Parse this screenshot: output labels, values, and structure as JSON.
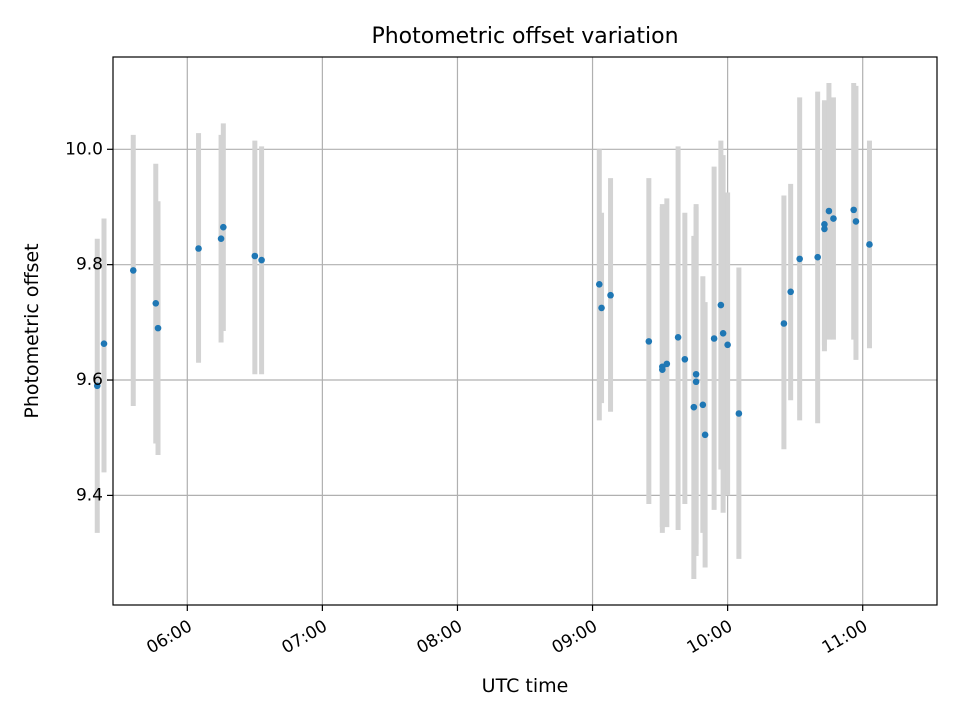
{
  "chart_data": {
    "type": "scatter",
    "title": "Photometric offset variation",
    "xlabel": "UTC time",
    "ylabel": "Photometric offset",
    "x_unit": "UTC HH:MM",
    "xlim": [
      "05:27",
      "11:33"
    ],
    "ylim": [
      9.21,
      10.16
    ],
    "grid": true,
    "x_ticks": [
      "06:00",
      "07:00",
      "08:00",
      "09:00",
      "10:00",
      "11:00"
    ],
    "y_ticks": [
      "9.4",
      "9.6",
      "9.8",
      "10.0"
    ],
    "point_color": "#1f77b4",
    "errorbar_color": "#d3d3d3",
    "series": [
      {
        "points": [
          {
            "x": "05:20",
            "y": 9.59,
            "err_low": 9.335,
            "err_high": 9.845
          },
          {
            "x": "05:23",
            "y": 9.663,
            "err_low": 9.44,
            "err_high": 9.88
          },
          {
            "x": "05:36",
            "y": 9.79,
            "err_low": 9.555,
            "err_high": 10.025
          },
          {
            "x": "05:46",
            "y": 9.733,
            "err_low": 9.49,
            "err_high": 9.975
          },
          {
            "x": "05:47",
            "y": 9.69,
            "err_low": 9.47,
            "err_high": 9.91
          },
          {
            "x": "06:05",
            "y": 9.828,
            "err_low": 9.63,
            "err_high": 10.028
          },
          {
            "x": "06:15",
            "y": 9.845,
            "err_low": 9.665,
            "err_high": 10.025
          },
          {
            "x": "06:16",
            "y": 9.865,
            "err_low": 9.685,
            "err_high": 10.045
          },
          {
            "x": "06:30",
            "y": 9.815,
            "err_low": 9.61,
            "err_high": 10.015
          },
          {
            "x": "06:33",
            "y": 9.808,
            "err_low": 9.61,
            "err_high": 10.005
          },
          {
            "x": "09:03",
            "y": 9.766,
            "err_low": 9.53,
            "err_high": 10.0
          },
          {
            "x": "09:04",
            "y": 9.725,
            "err_low": 9.56,
            "err_high": 9.89
          },
          {
            "x": "09:08",
            "y": 9.747,
            "err_low": 9.545,
            "err_high": 9.95
          },
          {
            "x": "09:25",
            "y": 9.667,
            "err_low": 9.385,
            "err_high": 9.95
          },
          {
            "x": "09:31",
            "y": 9.618,
            "err_low": 9.335,
            "err_high": 9.9
          },
          {
            "x": "09:31",
            "y": 9.623,
            "err_low": 9.345,
            "err_high": 9.905
          },
          {
            "x": "09:33",
            "y": 9.628,
            "err_low": 9.345,
            "err_high": 9.915
          },
          {
            "x": "09:38",
            "y": 9.674,
            "err_low": 9.34,
            "err_high": 10.005
          },
          {
            "x": "09:41",
            "y": 9.636,
            "err_low": 9.385,
            "err_high": 9.89
          },
          {
            "x": "09:45",
            "y": 9.553,
            "err_low": 9.255,
            "err_high": 9.85
          },
          {
            "x": "09:46",
            "y": 9.597,
            "err_low": 9.295,
            "err_high": 9.9
          },
          {
            "x": "09:46",
            "y": 9.61,
            "err_low": 9.315,
            "err_high": 9.905
          },
          {
            "x": "09:49",
            "y": 9.557,
            "err_low": 9.335,
            "err_high": 9.78
          },
          {
            "x": "09:50",
            "y": 9.505,
            "err_low": 9.275,
            "err_high": 9.735
          },
          {
            "x": "09:54",
            "y": 9.672,
            "err_low": 9.375,
            "err_high": 9.97
          },
          {
            "x": "09:57",
            "y": 9.73,
            "err_low": 9.445,
            "err_high": 10.015
          },
          {
            "x": "09:58",
            "y": 9.681,
            "err_low": 9.37,
            "err_high": 9.99
          },
          {
            "x": "10:00",
            "y": 9.661,
            "err_low": 9.4,
            "err_high": 9.925
          },
          {
            "x": "10:05",
            "y": 9.542,
            "err_low": 9.29,
            "err_high": 9.795
          },
          {
            "x": "10:25",
            "y": 9.698,
            "err_low": 9.48,
            "err_high": 9.92
          },
          {
            "x": "10:28",
            "y": 9.753,
            "err_low": 9.565,
            "err_high": 9.94
          },
          {
            "x": "10:32",
            "y": 9.81,
            "err_low": 9.53,
            "err_high": 10.09
          },
          {
            "x": "10:40",
            "y": 9.813,
            "err_low": 9.525,
            "err_high": 10.1
          },
          {
            "x": "10:43",
            "y": 9.862,
            "err_low": 9.65,
            "err_high": 10.08
          },
          {
            "x": "10:43",
            "y": 9.87,
            "err_low": 9.66,
            "err_high": 10.085
          },
          {
            "x": "10:45",
            "y": 9.893,
            "err_low": 9.67,
            "err_high": 10.115
          },
          {
            "x": "10:47",
            "y": 9.88,
            "err_low": 9.67,
            "err_high": 10.09
          },
          {
            "x": "10:56",
            "y": 9.895,
            "err_low": 9.67,
            "err_high": 10.115
          },
          {
            "x": "10:57",
            "y": 9.875,
            "err_low": 9.635,
            "err_high": 10.11
          },
          {
            "x": "11:03",
            "y": 9.835,
            "err_low": 9.655,
            "err_high": 10.015
          }
        ]
      }
    ]
  }
}
